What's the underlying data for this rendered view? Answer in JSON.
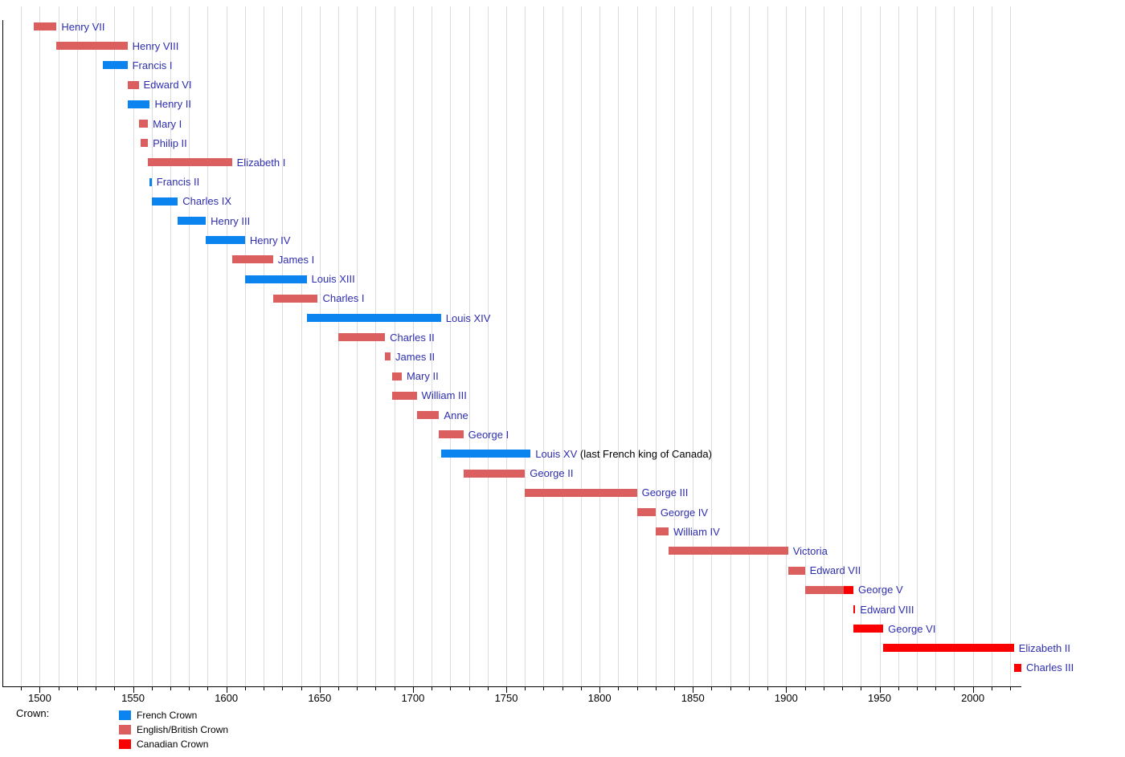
{
  "chart_data": {
    "type": "bar",
    "subtype": "timeline-gantt",
    "title": "",
    "x_axis": {
      "min": 1480,
      "max": 2026,
      "major_ticks": [
        1500,
        1550,
        1600,
        1650,
        1700,
        1750,
        1800,
        1850,
        1900,
        1950,
        2000
      ],
      "minor_tick_step": 10,
      "gridlines": true
    },
    "crowns": {
      "french": {
        "label": "French Crown",
        "color": "#0b84f0"
      },
      "english": {
        "label": "English/British Crown",
        "color": "#dc5f5f"
      },
      "canadian": {
        "label": "Canadian Crown",
        "color": "#fa0000"
      }
    },
    "legend": {
      "title": "Crown:",
      "order": [
        "french",
        "english",
        "canadian"
      ],
      "position": "bottom-left"
    },
    "monarchs": [
      {
        "name": "Henry VII",
        "segments": [
          {
            "crown": "english",
            "start": 1497,
            "end": 1509
          }
        ]
      },
      {
        "name": "Henry VIII",
        "segments": [
          {
            "crown": "english",
            "start": 1509,
            "end": 1547
          }
        ]
      },
      {
        "name": "Francis I",
        "segments": [
          {
            "crown": "french",
            "start": 1534,
            "end": 1547
          }
        ]
      },
      {
        "name": "Edward VI",
        "segments": [
          {
            "crown": "english",
            "start": 1547,
            "end": 1553
          }
        ]
      },
      {
        "name": "Henry II",
        "segments": [
          {
            "crown": "french",
            "start": 1547,
            "end": 1559
          }
        ]
      },
      {
        "name": "Mary I",
        "segments": [
          {
            "crown": "english",
            "start": 1553,
            "end": 1558
          }
        ]
      },
      {
        "name": "Philip II",
        "segments": [
          {
            "crown": "english",
            "start": 1554,
            "end": 1558
          }
        ]
      },
      {
        "name": "Elizabeth I",
        "segments": [
          {
            "crown": "english",
            "start": 1558,
            "end": 1603
          }
        ]
      },
      {
        "name": "Francis II",
        "segments": [
          {
            "crown": "french",
            "start": 1559,
            "end": 1560
          }
        ]
      },
      {
        "name": "Charles IX",
        "segments": [
          {
            "crown": "french",
            "start": 1560,
            "end": 1574
          }
        ]
      },
      {
        "name": "Henry III",
        "segments": [
          {
            "crown": "french",
            "start": 1574,
            "end": 1589
          }
        ]
      },
      {
        "name": "Henry IV",
        "segments": [
          {
            "crown": "french",
            "start": 1589,
            "end": 1610
          }
        ]
      },
      {
        "name": "James I",
        "segments": [
          {
            "crown": "english",
            "start": 1603,
            "end": 1625
          }
        ]
      },
      {
        "name": "Louis XIII",
        "segments": [
          {
            "crown": "french",
            "start": 1610,
            "end": 1643
          }
        ]
      },
      {
        "name": "Charles I",
        "segments": [
          {
            "crown": "english",
            "start": 1625,
            "end": 1649
          }
        ]
      },
      {
        "name": "Louis XIV",
        "segments": [
          {
            "crown": "french",
            "start": 1643,
            "end": 1715
          }
        ]
      },
      {
        "name": "Charles II",
        "segments": [
          {
            "crown": "english",
            "start": 1660,
            "end": 1685
          }
        ]
      },
      {
        "name": "James II",
        "segments": [
          {
            "crown": "english",
            "start": 1685,
            "end": 1688
          }
        ]
      },
      {
        "name": "Mary II",
        "segments": [
          {
            "crown": "english",
            "start": 1689,
            "end": 1694
          }
        ]
      },
      {
        "name": "William III",
        "segments": [
          {
            "crown": "english",
            "start": 1689,
            "end": 1702
          }
        ]
      },
      {
        "name": "Anne",
        "segments": [
          {
            "crown": "english",
            "start": 1702,
            "end": 1714
          }
        ]
      },
      {
        "name": "George I",
        "segments": [
          {
            "crown": "english",
            "start": 1714,
            "end": 1727
          }
        ]
      },
      {
        "name": "Louis XV",
        "suffix": " (last French king of Canada)",
        "segments": [
          {
            "crown": "french",
            "start": 1715,
            "end": 1763
          }
        ]
      },
      {
        "name": "George II",
        "segments": [
          {
            "crown": "english",
            "start": 1727,
            "end": 1760
          }
        ]
      },
      {
        "name": "George III",
        "segments": [
          {
            "crown": "english",
            "start": 1760,
            "end": 1820
          }
        ]
      },
      {
        "name": "George IV",
        "segments": [
          {
            "crown": "english",
            "start": 1820,
            "end": 1830
          }
        ]
      },
      {
        "name": "William IV",
        "segments": [
          {
            "crown": "english",
            "start": 1830,
            "end": 1837
          }
        ]
      },
      {
        "name": "Victoria",
        "segments": [
          {
            "crown": "english",
            "start": 1837,
            "end": 1901
          }
        ]
      },
      {
        "name": "Edward VII",
        "segments": [
          {
            "crown": "english",
            "start": 1901,
            "end": 1910
          }
        ]
      },
      {
        "name": "George V",
        "segments": [
          {
            "crown": "english",
            "start": 1910,
            "end": 1931
          },
          {
            "crown": "canadian",
            "start": 1931,
            "end": 1936
          }
        ]
      },
      {
        "name": "Edward VIII",
        "segments": [
          {
            "crown": "canadian",
            "start": 1936,
            "end": 1937
          }
        ]
      },
      {
        "name": "George VI",
        "segments": [
          {
            "crown": "canadian",
            "start": 1936,
            "end": 1952
          }
        ]
      },
      {
        "name": "Elizabeth II",
        "segments": [
          {
            "crown": "canadian",
            "start": 1952,
            "end": 2022
          }
        ]
      },
      {
        "name": "Charles III",
        "segments": [
          {
            "crown": "canadian",
            "start": 2022,
            "end": 2026
          }
        ]
      }
    ],
    "colors": {
      "monarch_label": "#2e2eb0",
      "suffix_label": "#000000",
      "gridline": "#dcdcdc",
      "axis": "#000000"
    }
  }
}
